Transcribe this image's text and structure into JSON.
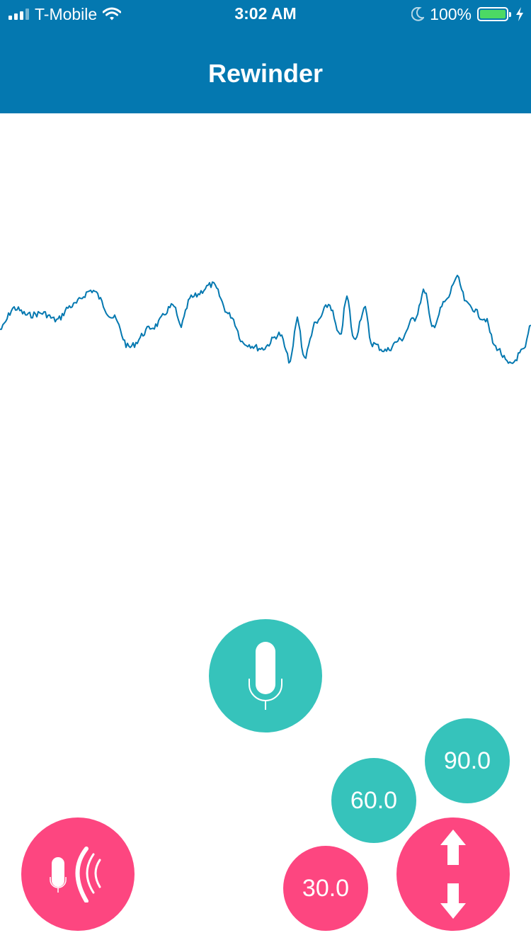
{
  "status_bar": {
    "carrier": "T-Mobile",
    "time": "3:02 AM",
    "battery_percent": "100%",
    "battery_level": 1.0,
    "icons": [
      "signal-icon",
      "wifi-icon",
      "moon-icon",
      "battery-icon",
      "charging-bolt-icon"
    ]
  },
  "nav": {
    "title": "Rewinder"
  },
  "waveform": {
    "icon": "audio-waveform",
    "color": "#0478b0"
  },
  "controls": {
    "record_icon": "microphone-icon",
    "playback_icon": "microphone-sound-waves-icon",
    "scroll_icon": "up-down-arrows-icon",
    "rewind_30_label": "30.0",
    "rewind_60_label": "60.0",
    "rewind_90_label": "90.0"
  },
  "colors": {
    "header": "#0478b0",
    "teal": "#36c3bb",
    "pink": "#fd4680",
    "battery": "#4cd964"
  }
}
